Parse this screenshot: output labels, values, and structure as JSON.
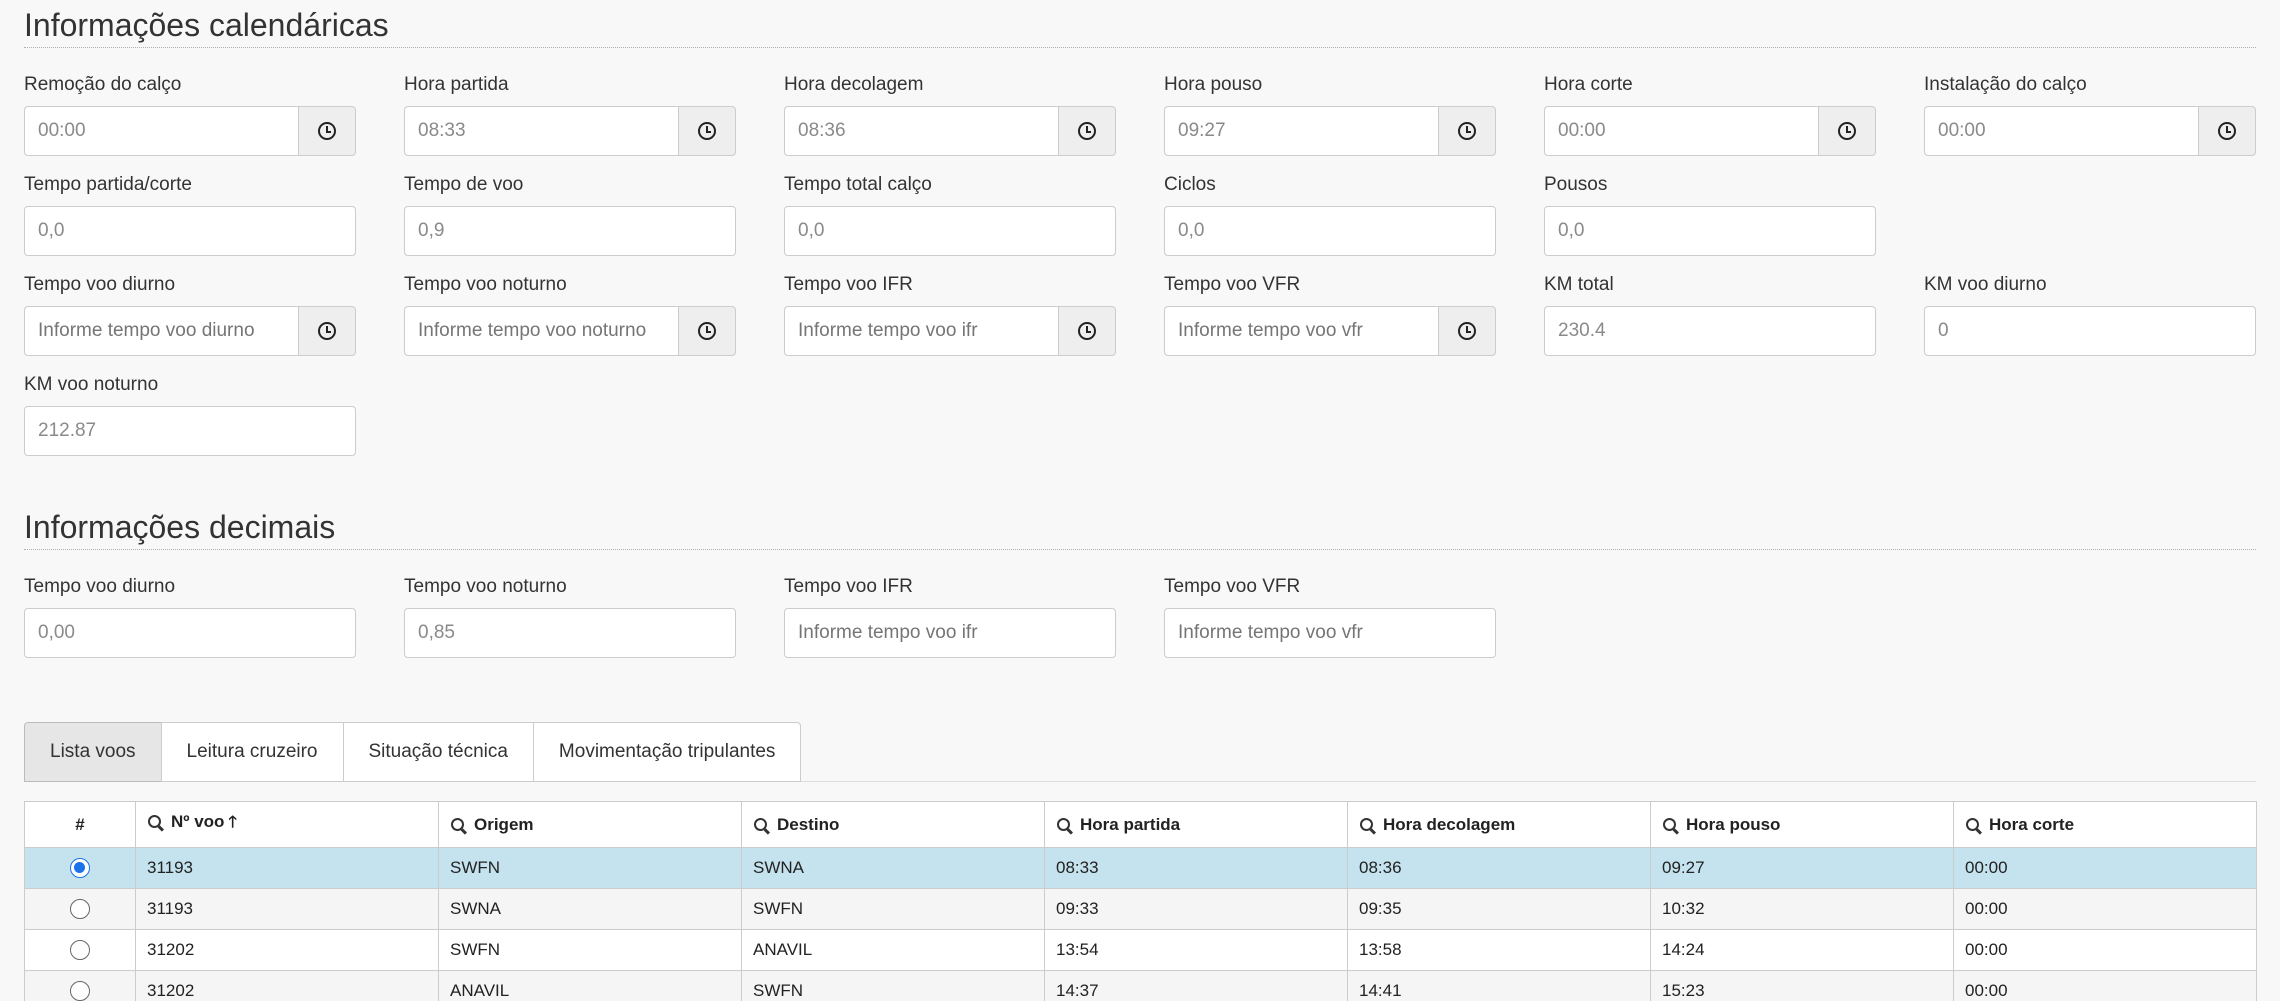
{
  "sections": {
    "calendar_title": "Informações calendáricas",
    "decimal_title": "Informações decimais"
  },
  "calendar": {
    "row1": [
      {
        "label": "Remoção do calço",
        "value": "00:00"
      },
      {
        "label": "Hora partida",
        "value": "08:33"
      },
      {
        "label": "Hora decolagem",
        "value": "08:36"
      },
      {
        "label": "Hora pouso",
        "value": "09:27"
      },
      {
        "label": "Hora corte",
        "value": "00:00"
      },
      {
        "label": "Instalação do calço",
        "value": "00:00"
      }
    ],
    "row2": [
      {
        "label": "Tempo partida/corte",
        "value": "0,0"
      },
      {
        "label": "Tempo de voo",
        "value": "0,9"
      },
      {
        "label": "Tempo total calço",
        "value": "0,0"
      },
      {
        "label": "Ciclos",
        "value": "0,0"
      },
      {
        "label": "Pousos",
        "value": "0,0"
      }
    ],
    "row3": [
      {
        "label": "Tempo voo diurno",
        "placeholder": "Informe tempo voo diurno"
      },
      {
        "label": "Tempo voo noturno",
        "placeholder": "Informe tempo voo noturno"
      },
      {
        "label": "Tempo voo IFR",
        "placeholder": "Informe tempo voo ifr"
      },
      {
        "label": "Tempo voo VFR",
        "placeholder": "Informe tempo voo vfr"
      },
      {
        "label": "KM total",
        "value": "230.4"
      },
      {
        "label": "KM voo diurno",
        "value": "0"
      }
    ],
    "row4": [
      {
        "label": "KM voo noturno",
        "value": "212.87"
      }
    ]
  },
  "decimal": [
    {
      "label": "Tempo voo diurno",
      "value": "0,00"
    },
    {
      "label": "Tempo voo noturno",
      "value": "0,85"
    },
    {
      "label": "Tempo voo IFR",
      "placeholder": "Informe tempo voo ifr"
    },
    {
      "label": "Tempo voo VFR",
      "placeholder": "Informe tempo voo vfr"
    }
  ],
  "tabs": [
    "Lista voos",
    "Leitura cruzeiro",
    "Situação técnica",
    "Movimentação tripulantes"
  ],
  "table": {
    "headers": [
      "#",
      "Nº voo",
      "Origem",
      "Destino",
      "Hora partida",
      "Hora decolagem",
      "Hora pouso",
      "Hora corte"
    ],
    "sort_glyph": "🡑",
    "rows": [
      {
        "selected": true,
        "cells": [
          "31193",
          "SWFN",
          "SWNA",
          "08:33",
          "08:36",
          "09:27",
          "00:00"
        ]
      },
      {
        "selected": false,
        "cells": [
          "31193",
          "SWNA",
          "SWFN",
          "09:33",
          "09:35",
          "10:32",
          "00:00"
        ]
      },
      {
        "selected": false,
        "cells": [
          "31202",
          "SWFN",
          "ANAVIL",
          "13:54",
          "13:58",
          "14:24",
          "00:00"
        ]
      },
      {
        "selected": false,
        "cells": [
          "31202",
          "ANAVIL",
          "SWFN",
          "14:37",
          "14:41",
          "15:23",
          "00:00"
        ]
      }
    ]
  }
}
